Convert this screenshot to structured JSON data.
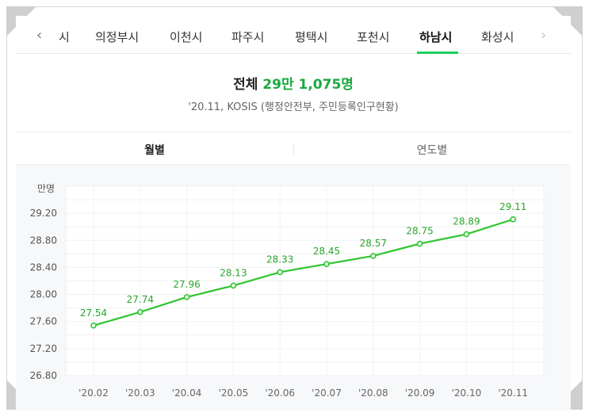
{
  "tabs": {
    "items": [
      "시",
      "의정부시",
      "이천시",
      "파주시",
      "평택시",
      "포천시",
      "하남시",
      "화성시"
    ],
    "active_index": 6,
    "prev_icon": "chevron-left-icon",
    "next_icon": "chevron-right-icon"
  },
  "summary": {
    "total_label": "전체",
    "total_value": "29만 1,075명",
    "source": "'20.11, KOSIS (행정안전부, 주민등록인구현황)"
  },
  "period": {
    "monthly_label": "월별",
    "yearly_label": "연도별",
    "active": "monthly"
  },
  "colors": {
    "accent": "#19ce60",
    "line": "#2ec52e",
    "label": "#2aa52a"
  },
  "chart_data": {
    "type": "line",
    "unit_label": "만명",
    "categories": [
      "'20.02",
      "'20.03",
      "'20.04",
      "'20.05",
      "'20.06",
      "'20.07",
      "'20.08",
      "'20.09",
      "'20.10",
      "'20.11"
    ],
    "values": [
      27.54,
      27.74,
      27.96,
      28.13,
      28.33,
      28.45,
      28.57,
      28.75,
      28.89,
      29.11
    ],
    "value_labels": [
      "27.54",
      "27.74",
      "27.96",
      "28.13",
      "28.33",
      "28.45",
      "28.57",
      "28.75",
      "28.89",
      "29.11"
    ],
    "y_ticks": [
      "26.80",
      "27.20",
      "27.60",
      "28.00",
      "28.40",
      "28.80",
      "29.20"
    ],
    "ylim": [
      26.8,
      29.6
    ],
    "grid": true,
    "title": "",
    "xlabel": "",
    "ylabel": ""
  }
}
